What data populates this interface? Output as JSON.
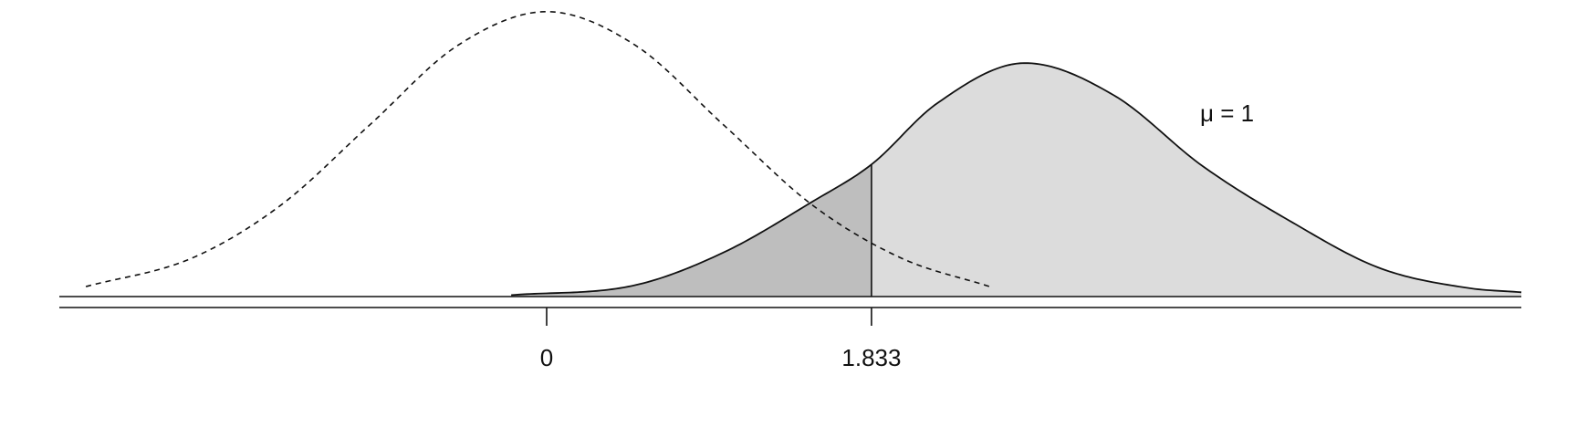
{
  "chart_data": {
    "type": "area",
    "title": "",
    "xlabel": "",
    "ylabel": "",
    "annotation": "μ = 1",
    "xlim": [
      -2.75,
      5.5
    ],
    "ylim": [
      0,
      0.4
    ],
    "grid": false,
    "critical_value": 1.833,
    "tick_values": [
      0,
      1.833
    ],
    "tick_labels": [
      "0",
      "1.833"
    ],
    "series": [
      {
        "style": "dashed",
        "x": [
          -2.6,
          -2.0,
          -1.5,
          -1.0,
          -0.5,
          0,
          0.5,
          1.0,
          1.5,
          2.0,
          2.5
        ],
        "y": [
          0.014,
          0.054,
          0.128,
          0.24,
          0.352,
          0.399,
          0.352,
          0.24,
          0.128,
          0.054,
          0.014
        ]
      },
      {
        "style": "solid",
        "fill": "#dcdcdc",
        "x": [
          -0.2,
          0.5,
          1.0,
          1.5,
          1.833,
          2.2,
          2.7,
          3.2,
          3.7,
          4.2,
          4.7,
          5.2,
          5.5
        ],
        "y": [
          0.002,
          0.016,
          0.062,
          0.133,
          0.185,
          0.27,
          0.327,
          0.282,
          0.183,
          0.105,
          0.04,
          0.012,
          0.006
        ]
      }
    ],
    "shaded_region": {
      "from": -0.2,
      "to": 1.833,
      "fill": "#bebebe"
    }
  }
}
